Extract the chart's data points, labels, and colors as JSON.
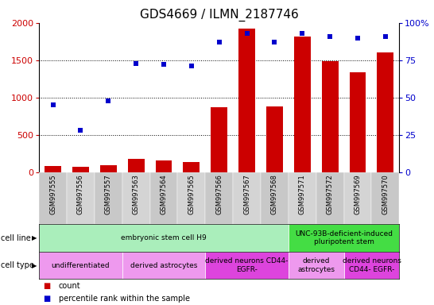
{
  "title": "GDS4669 / ILMN_2187746",
  "samples": [
    "GSM997555",
    "GSM997556",
    "GSM997557",
    "GSM997563",
    "GSM997564",
    "GSM997565",
    "GSM997566",
    "GSM997567",
    "GSM997568",
    "GSM997571",
    "GSM997572",
    "GSM997569",
    "GSM997570"
  ],
  "counts": [
    80,
    70,
    90,
    175,
    160,
    135,
    870,
    1920,
    880,
    1820,
    1490,
    1340,
    1600
  ],
  "percentiles": [
    45,
    28,
    48,
    73,
    72,
    71,
    87,
    93,
    87,
    93,
    91,
    90,
    91
  ],
  "ylim_left": [
    0,
    2000
  ],
  "ylim_right": [
    0,
    100
  ],
  "yticks_left": [
    0,
    500,
    1000,
    1500,
    2000
  ],
  "yticks_right": [
    0,
    25,
    50,
    75,
    100
  ],
  "bar_color": "#cc0000",
  "dot_color": "#0000cc",
  "cell_line_groups": [
    {
      "label": "embryonic stem cell H9",
      "start": 0,
      "end": 8,
      "color": "#aaeebb"
    },
    {
      "label": "UNC-93B-deficient-induced\npluripotent stem",
      "start": 9,
      "end": 12,
      "color": "#44dd44"
    }
  ],
  "cell_type_groups": [
    {
      "label": "undifferentiated",
      "start": 0,
      "end": 2,
      "color": "#ee99ee"
    },
    {
      "label": "derived astrocytes",
      "start": 3,
      "end": 5,
      "color": "#ee99ee"
    },
    {
      "label": "derived neurons CD44-\nEGFR-",
      "start": 6,
      "end": 8,
      "color": "#dd44dd"
    },
    {
      "label": "derived\nastrocytes",
      "start": 9,
      "end": 10,
      "color": "#ee99ee"
    },
    {
      "label": "derived neurons\nCD44- EGFR-",
      "start": 11,
      "end": 12,
      "color": "#dd44dd"
    }
  ],
  "legend": [
    {
      "label": "count",
      "color": "#cc0000"
    },
    {
      "label": "percentile rank within the sample",
      "color": "#0000cc"
    }
  ],
  "tick_color_left": "#cc0000",
  "tick_color_right": "#0000cc",
  "title_fontsize": 11,
  "tick_fontsize": 8,
  "sample_fontsize": 6,
  "annotation_fontsize": 6.5,
  "row_label_fontsize": 7,
  "legend_fontsize": 7
}
